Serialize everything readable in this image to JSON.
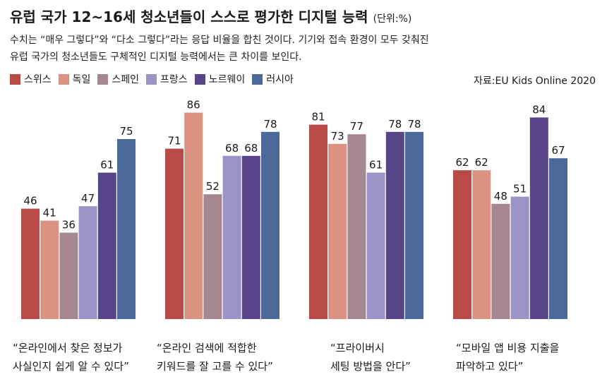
{
  "title": {
    "main": "유럽 국가 12~16세 청소년들이 스스로 평가한 디지털 능력",
    "unit": "(단위:%)"
  },
  "subtitle": [
    "수치는 “매우 그렇다”와 “다소 그렇다”라는 응답 비율을 합친 것이다. 기기와 접속 환경이 모두 갖춰진",
    "유럽 국가의 청소년들도 구체적인 디지털 능력에서는 큰 차이를 보인다."
  ],
  "source": "자료:EU Kids Online 2020",
  "colors": {
    "스위스": "#b94a48",
    "독일": "#dc9282",
    "스페인": "#a68690",
    "프랑스": "#9b92c5",
    "노르웨이": "#574489",
    "러시아": "#4c6a99"
  },
  "chart_data": {
    "type": "bar",
    "ylim": [
      0,
      100
    ],
    "grid": false,
    "legend_position": "top-left",
    "categories": [
      "“온라인에서 찾은 정보가 사실인지 쉽게 알 수 있다”",
      "“온라인 검색에 적합한 키워드를 잘 고를 수 있다”",
      "“프라이버시 세팅 방법을 안다”",
      "“모바일 앱 비용 지출을 파악하고 있다”"
    ],
    "category_lines": [
      [
        "“온라인에서 찾은 정보가",
        "사실인지 쉽게 알 수 있다”"
      ],
      [
        "“온라인 검색에 적합한",
        "키워드를 잘 고를 수 있다”"
      ],
      [
        "“프라이버시",
        "세팅 방법을 안다”"
      ],
      [
        "“모바일 앱 비용 지출을",
        "파악하고 있다”"
      ]
    ],
    "series": [
      {
        "name": "스위스",
        "values": [
          46,
          71,
          81,
          62
        ]
      },
      {
        "name": "독일",
        "values": [
          41,
          86,
          73,
          62
        ]
      },
      {
        "name": "스페인",
        "values": [
          36,
          52,
          77,
          48
        ]
      },
      {
        "name": "프랑스",
        "values": [
          47,
          68,
          61,
          51
        ]
      },
      {
        "name": "노르웨이",
        "values": [
          61,
          68,
          78,
          84
        ]
      },
      {
        "name": "러시아",
        "values": [
          75,
          78,
          78,
          67
        ]
      }
    ]
  }
}
